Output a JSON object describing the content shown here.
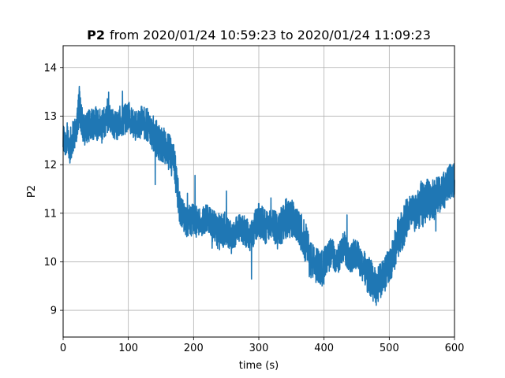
{
  "chart_data": {
    "type": "line",
    "title_bold": "P2",
    "title_rest": "from 2020/01/24 10:59:23 to 2020/01/24 11:09:23",
    "xlabel": "time (s)",
    "ylabel": "P2",
    "xlim": [
      0,
      600
    ],
    "ylim": [
      8.45,
      14.45
    ],
    "x_ticks": [
      0,
      100,
      200,
      300,
      400,
      500,
      600
    ],
    "y_ticks": [
      9,
      10,
      11,
      12,
      13,
      14
    ],
    "grid": true,
    "legend": "none",
    "colors": {
      "series": "#1f77b4",
      "grid": "#b0b0b0"
    },
    "series": [
      {
        "x": [
          0,
          10,
          20,
          25,
          30,
          40,
          50,
          60,
          70,
          80,
          90,
          100,
          110,
          120,
          130,
          140,
          150,
          160,
          170,
          180,
          190,
          200,
          210,
          220,
          230,
          240,
          250,
          260,
          270,
          280,
          290,
          300,
          310,
          320,
          330,
          340,
          350,
          360,
          370,
          380,
          390,
          400,
          410,
          420,
          430,
          440,
          450,
          460,
          470,
          480,
          490,
          500,
          510,
          520,
          530,
          540,
          550,
          560,
          570,
          580,
          590,
          600
        ],
        "y": [
          12.5,
          12.4,
          12.7,
          13.3,
          12.7,
          12.8,
          12.9,
          12.8,
          13.0,
          12.8,
          12.9,
          13.0,
          12.8,
          12.9,
          12.8,
          12.6,
          12.4,
          12.3,
          12.0,
          11.0,
          10.8,
          10.9,
          10.8,
          10.9,
          10.7,
          10.6,
          10.7,
          10.5,
          10.7,
          10.6,
          10.6,
          10.9,
          10.7,
          10.8,
          10.6,
          10.9,
          10.9,
          10.7,
          10.5,
          10.0,
          9.9,
          9.9,
          10.2,
          10.0,
          10.3,
          10.1,
          10.2,
          9.9,
          9.7,
          9.5,
          9.7,
          9.9,
          10.3,
          10.7,
          11.0,
          11.0,
          11.2,
          11.3,
          11.3,
          11.4,
          11.6,
          11.7
        ],
        "amplitude": [
          0.5,
          0.5,
          0.45,
          0.6,
          0.5,
          0.45,
          0.5,
          0.45,
          0.4,
          0.4,
          0.45,
          0.4,
          0.4,
          0.45,
          0.45,
          0.5,
          0.5,
          0.5,
          0.55,
          0.45,
          0.4,
          0.45,
          0.4,
          0.4,
          0.45,
          0.5,
          0.5,
          0.4,
          0.4,
          0.4,
          0.45,
          0.5,
          0.5,
          0.45,
          0.5,
          0.55,
          0.55,
          0.45,
          0.55,
          0.55,
          0.5,
          0.5,
          0.45,
          0.4,
          0.45,
          0.45,
          0.4,
          0.45,
          0.55,
          0.5,
          0.5,
          0.45,
          0.55,
          0.6,
          0.5,
          0.5,
          0.6,
          0.55,
          0.55,
          0.5,
          0.5,
          0.45
        ]
      }
    ]
  }
}
